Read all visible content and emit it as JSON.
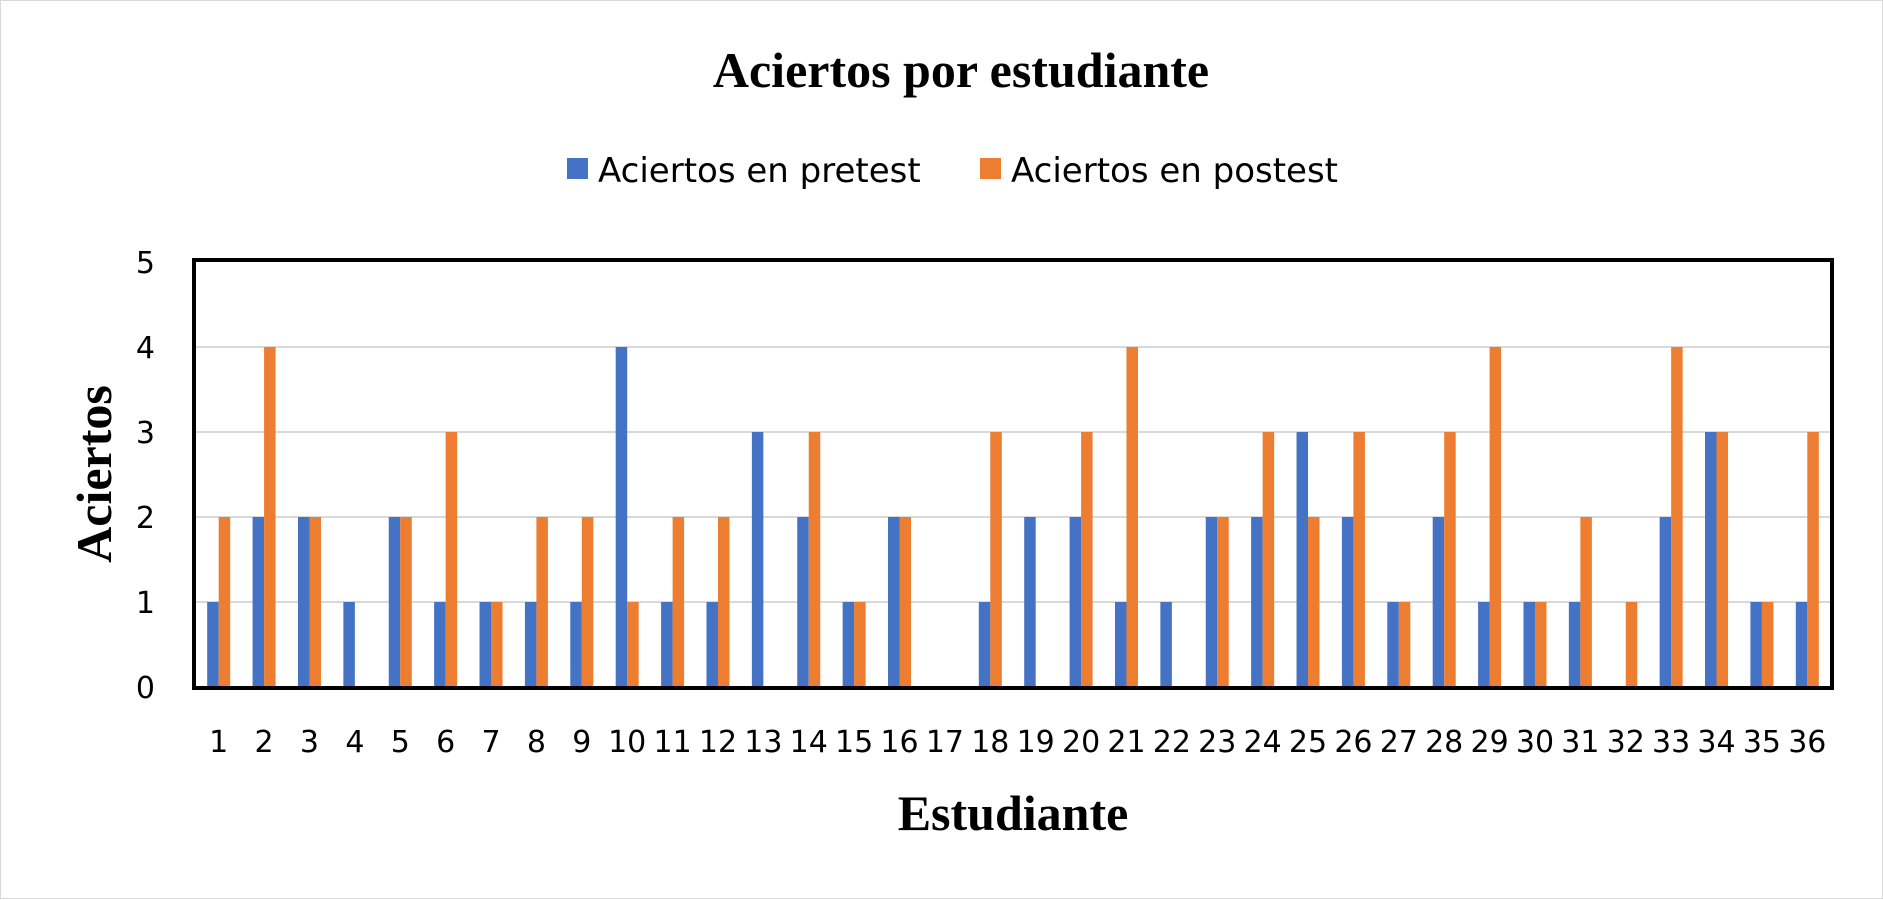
{
  "chart_data": {
    "type": "bar",
    "title": "Aciertos por estudiante",
    "xlabel": "Estudiante",
    "ylabel": "Aciertos",
    "ylim": [
      0,
      5
    ],
    "yticks": [
      "0",
      "1",
      "2",
      "3",
      "4",
      "5"
    ],
    "grid": true,
    "legend_position": "top",
    "categories": [
      "1",
      "2",
      "3",
      "4",
      "5",
      "6",
      "7",
      "8",
      "9",
      "10",
      "11",
      "12",
      "13",
      "14",
      "15",
      "16",
      "17",
      "18",
      "19",
      "20",
      "21",
      "22",
      "23",
      "24",
      "25",
      "26",
      "27",
      "28",
      "29",
      "30",
      "31",
      "32",
      "33",
      "34",
      "35",
      "36"
    ],
    "series": [
      {
        "name": "Aciertos en pretest",
        "color": "#4472C4",
        "values": [
          1,
          2,
          2,
          1,
          2,
          1,
          1,
          1,
          1,
          4,
          1,
          1,
          3,
          2,
          1,
          2,
          0,
          1,
          2,
          2,
          1,
          1,
          2,
          2,
          3,
          2,
          1,
          2,
          1,
          1,
          1,
          0,
          2,
          3,
          1,
          1
        ]
      },
      {
        "name": "Aciertos en postest",
        "color": "#ED7D31",
        "values": [
          2,
          4,
          2,
          0,
          2,
          3,
          1,
          2,
          2,
          1,
          2,
          2,
          0,
          3,
          1,
          2,
          0,
          3,
          0,
          3,
          4,
          0,
          2,
          3,
          2,
          3,
          1,
          3,
          4,
          1,
          2,
          1,
          4,
          3,
          1,
          3
        ]
      }
    ]
  }
}
